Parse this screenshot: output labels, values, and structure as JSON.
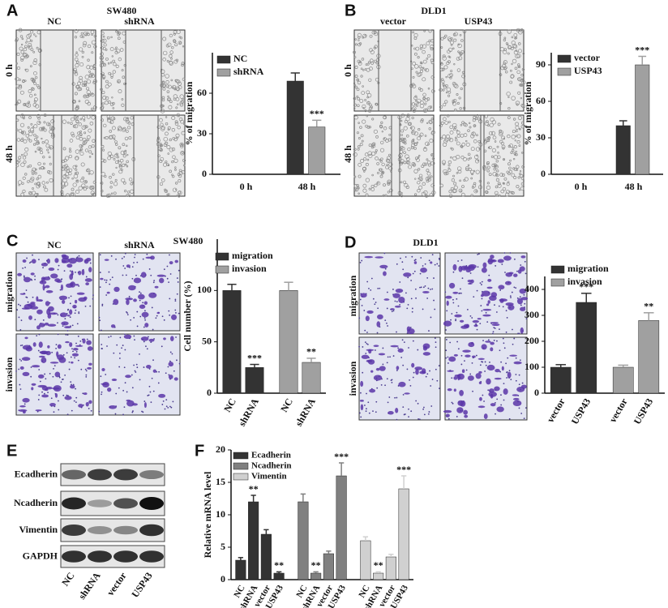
{
  "panels": [
    {
      "letter": "A",
      "title": "SW480",
      "columns": [
        "NC",
        "shRNA"
      ],
      "rows": [
        "0 h",
        "48 h"
      ]
    },
    {
      "letter": "B",
      "title": "DLD1",
      "columns": [
        "vector",
        "USP43"
      ],
      "rows": [
        "0 h",
        "48 h"
      ]
    },
    {
      "letter": "C",
      "title": "SW480",
      "columns": [
        "NC",
        "shRNA"
      ],
      "rows": [
        "migration",
        "invasion"
      ]
    },
    {
      "letter": "D",
      "title": "DLD1",
      "columns": [
        "vector",
        "USP43"
      ],
      "rows": [
        "migration",
        "invasion"
      ]
    }
  ],
  "blot": {
    "letter": "E",
    "proteins": [
      "Ecadherin",
      "Ncadherin",
      "Vimentin",
      "GAPDH"
    ],
    "lanes": [
      "NC",
      "shRNA",
      "vector",
      "USP43"
    ]
  },
  "chart_letter": "F",
  "chart_data": [
    {
      "type": "bar",
      "y_label": "% of migration",
      "categories": [
        "0 h",
        "48 h"
      ],
      "ylim": [
        0,
        90
      ],
      "yticks": [
        0,
        30,
        60
      ],
      "series": [
        {
          "name": "NC",
          "color": "#333333",
          "values": [
            null,
            69
          ],
          "errors": [
            null,
            6
          ],
          "significance": [
            null,
            null
          ]
        },
        {
          "name": "shRNA",
          "color": "#a0a0a0",
          "values": [
            null,
            35
          ],
          "errors": [
            null,
            5
          ],
          "significance": [
            null,
            "***"
          ]
        }
      ]
    },
    {
      "type": "bar",
      "y_label": "% of migration",
      "categories": [
        "0 h",
        "48 h"
      ],
      "ylim": [
        0,
        100
      ],
      "yticks": [
        0,
        30,
        60,
        90
      ],
      "series": [
        {
          "name": "vector",
          "color": "#333333",
          "values": [
            null,
            40
          ],
          "errors": [
            null,
            4
          ],
          "significance": [
            null,
            null
          ]
        },
        {
          "name": "USP43",
          "color": "#a0a0a0",
          "values": [
            null,
            90
          ],
          "errors": [
            null,
            7
          ],
          "significance": [
            null,
            "***"
          ]
        }
      ]
    },
    {
      "type": "bar",
      "y_label": "Cell number (%)",
      "categories": [
        "NC",
        "shRNA",
        "NC",
        "shRNA"
      ],
      "ylim": [
        0,
        150
      ],
      "yticks": [
        0,
        50,
        100
      ],
      "series": [
        {
          "name": "migration",
          "color": "#333333",
          "values": [
            100,
            25,
            null,
            null
          ],
          "errors": [
            6,
            3,
            null,
            null
          ],
          "significance": [
            null,
            "***",
            null,
            null
          ]
        },
        {
          "name": "invasion",
          "color": "#a0a0a0",
          "values": [
            null,
            null,
            100,
            30
          ],
          "errors": [
            null,
            null,
            8,
            4
          ],
          "significance": [
            null,
            null,
            null,
            "**"
          ]
        }
      ]
    },
    {
      "type": "bar",
      "categories": [
        "vector",
        "USP43",
        "vector",
        "USP43"
      ],
      "ylim": [
        0,
        450
      ],
      "yticks": [
        0,
        100,
        200,
        300,
        400
      ],
      "series": [
        {
          "name": "migration",
          "color": "#333333",
          "values": [
            100,
            350,
            null,
            null
          ],
          "errors": [
            10,
            35,
            null,
            null
          ],
          "significance": [
            null,
            "***",
            null,
            null
          ]
        },
        {
          "name": "invasion",
          "color": "#a0a0a0",
          "values": [
            null,
            null,
            100,
            280
          ],
          "errors": [
            null,
            null,
            8,
            30
          ],
          "significance": [
            null,
            null,
            null,
            "**"
          ]
        }
      ]
    },
    {
      "type": "bar",
      "y_label": "Relative mRNA level",
      "categories": [
        "NC",
        "shRNA",
        "vector",
        "USP43",
        "NC",
        "shRNA",
        "vector",
        "USP43",
        "NC",
        "shRNA",
        "vector",
        "USP43"
      ],
      "ylim": [
        0,
        20
      ],
      "yticks": [
        0,
        5,
        10,
        15,
        20
      ],
      "series": [
        {
          "name": "Ecadherin",
          "color": "#333333",
          "values": [
            3,
            12,
            7,
            1,
            null,
            null,
            null,
            null,
            null,
            null,
            null,
            null
          ],
          "errors": [
            0.4,
            1,
            0.7,
            0.2,
            null,
            null,
            null,
            null,
            null,
            null,
            null,
            null
          ],
          "significance": [
            null,
            "**",
            null,
            "**",
            null,
            null,
            null,
            null,
            null,
            null,
            null,
            null
          ]
        },
        {
          "name": "Ncadherin",
          "color": "#808080",
          "values": [
            null,
            null,
            null,
            null,
            12,
            1,
            4,
            16,
            null,
            null,
            null,
            null
          ],
          "errors": [
            null,
            null,
            null,
            null,
            1.2,
            0.2,
            0.4,
            2,
            null,
            null,
            null,
            null
          ],
          "significance": [
            null,
            null,
            null,
            null,
            null,
            "**",
            null,
            "***",
            null,
            null,
            null,
            null
          ]
        },
        {
          "name": "Vimentin",
          "color": "#d0d0d0",
          "values": [
            null,
            null,
            null,
            null,
            null,
            null,
            null,
            null,
            6,
            1,
            3.5,
            14
          ],
          "errors": [
            null,
            null,
            null,
            null,
            null,
            null,
            null,
            null,
            0.6,
            0.2,
            0.4,
            2
          ],
          "significance": [
            null,
            null,
            null,
            null,
            null,
            null,
            null,
            null,
            null,
            "**",
            null,
            "***"
          ]
        }
      ]
    }
  ]
}
